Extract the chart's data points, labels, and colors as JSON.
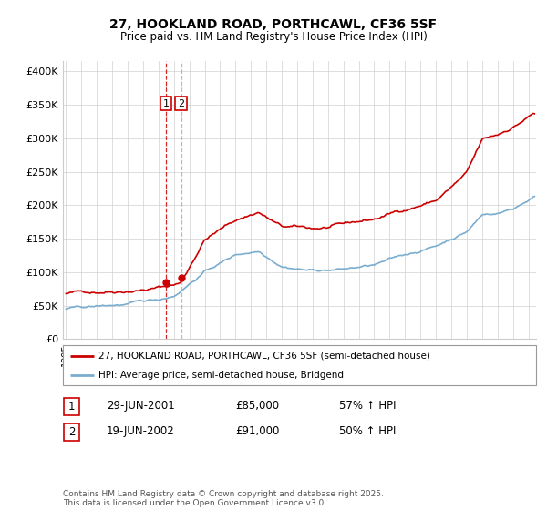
{
  "title": "27, HOOKLAND ROAD, PORTHCAWL, CF36 5SF",
  "subtitle": "Price paid vs. HM Land Registry's House Price Index (HPI)",
  "ylabel_ticks": [
    "£0",
    "£50K",
    "£100K",
    "£150K",
    "£200K",
    "£250K",
    "£300K",
    "£350K",
    "£400K"
  ],
  "ytick_vals": [
    0,
    50000,
    100000,
    150000,
    200000,
    250000,
    300000,
    350000,
    400000
  ],
  "ylim": [
    0,
    415000
  ],
  "xlim_start": 1994.8,
  "xlim_end": 2025.5,
  "red_color": "#cc0000",
  "blue_color": "#7aadcf",
  "dashed_color": "#cc0000",
  "dashed2_color": "#aaaadd",
  "legend_label_red": "27, HOOKLAND ROAD, PORTHCAWL, CF36 5SF (semi-detached house)",
  "legend_label_blue": "HPI: Average price, semi-detached house, Bridgend",
  "transactions": [
    {
      "num": "1",
      "date": "29-JUN-2001",
      "price": "£85,000",
      "change": "57% ↑ HPI"
    },
    {
      "num": "2",
      "date": "19-JUN-2002",
      "price": "£91,000",
      "change": "50% ↑ HPI"
    }
  ],
  "vline1_x": 2001.49,
  "vline2_x": 2002.47,
  "footnote": "Contains HM Land Registry data © Crown copyright and database right 2025.\nThis data is licensed under the Open Government Licence v3.0.",
  "marker1_x": 2001.49,
  "marker1_y": 85000,
  "marker2_x": 2002.47,
  "marker2_y": 91000,
  "red_knots": [
    1995,
    1997,
    1999,
    2001.49,
    2002.47,
    2004,
    2006,
    2007.5,
    2009,
    2011,
    2013,
    2015,
    2017,
    2019,
    2021,
    2022,
    2023,
    2024,
    2025.3
  ],
  "red_vals": [
    68000,
    72000,
    78000,
    85000,
    91000,
    157000,
    185000,
    198000,
    175000,
    170000,
    173000,
    180000,
    195000,
    210000,
    248000,
    295000,
    302000,
    315000,
    335000
  ],
  "blue_knots": [
    1995,
    1997,
    1999,
    2001,
    2002,
    2004,
    2006,
    2007.5,
    2009,
    2011,
    2013,
    2015,
    2017,
    2019,
    2021,
    2022,
    2023,
    2024,
    2025.3
  ],
  "blue_vals": [
    45000,
    47000,
    50000,
    55000,
    62000,
    100000,
    125000,
    132000,
    113000,
    108000,
    110000,
    115000,
    128000,
    142000,
    165000,
    190000,
    193000,
    200000,
    218000
  ]
}
